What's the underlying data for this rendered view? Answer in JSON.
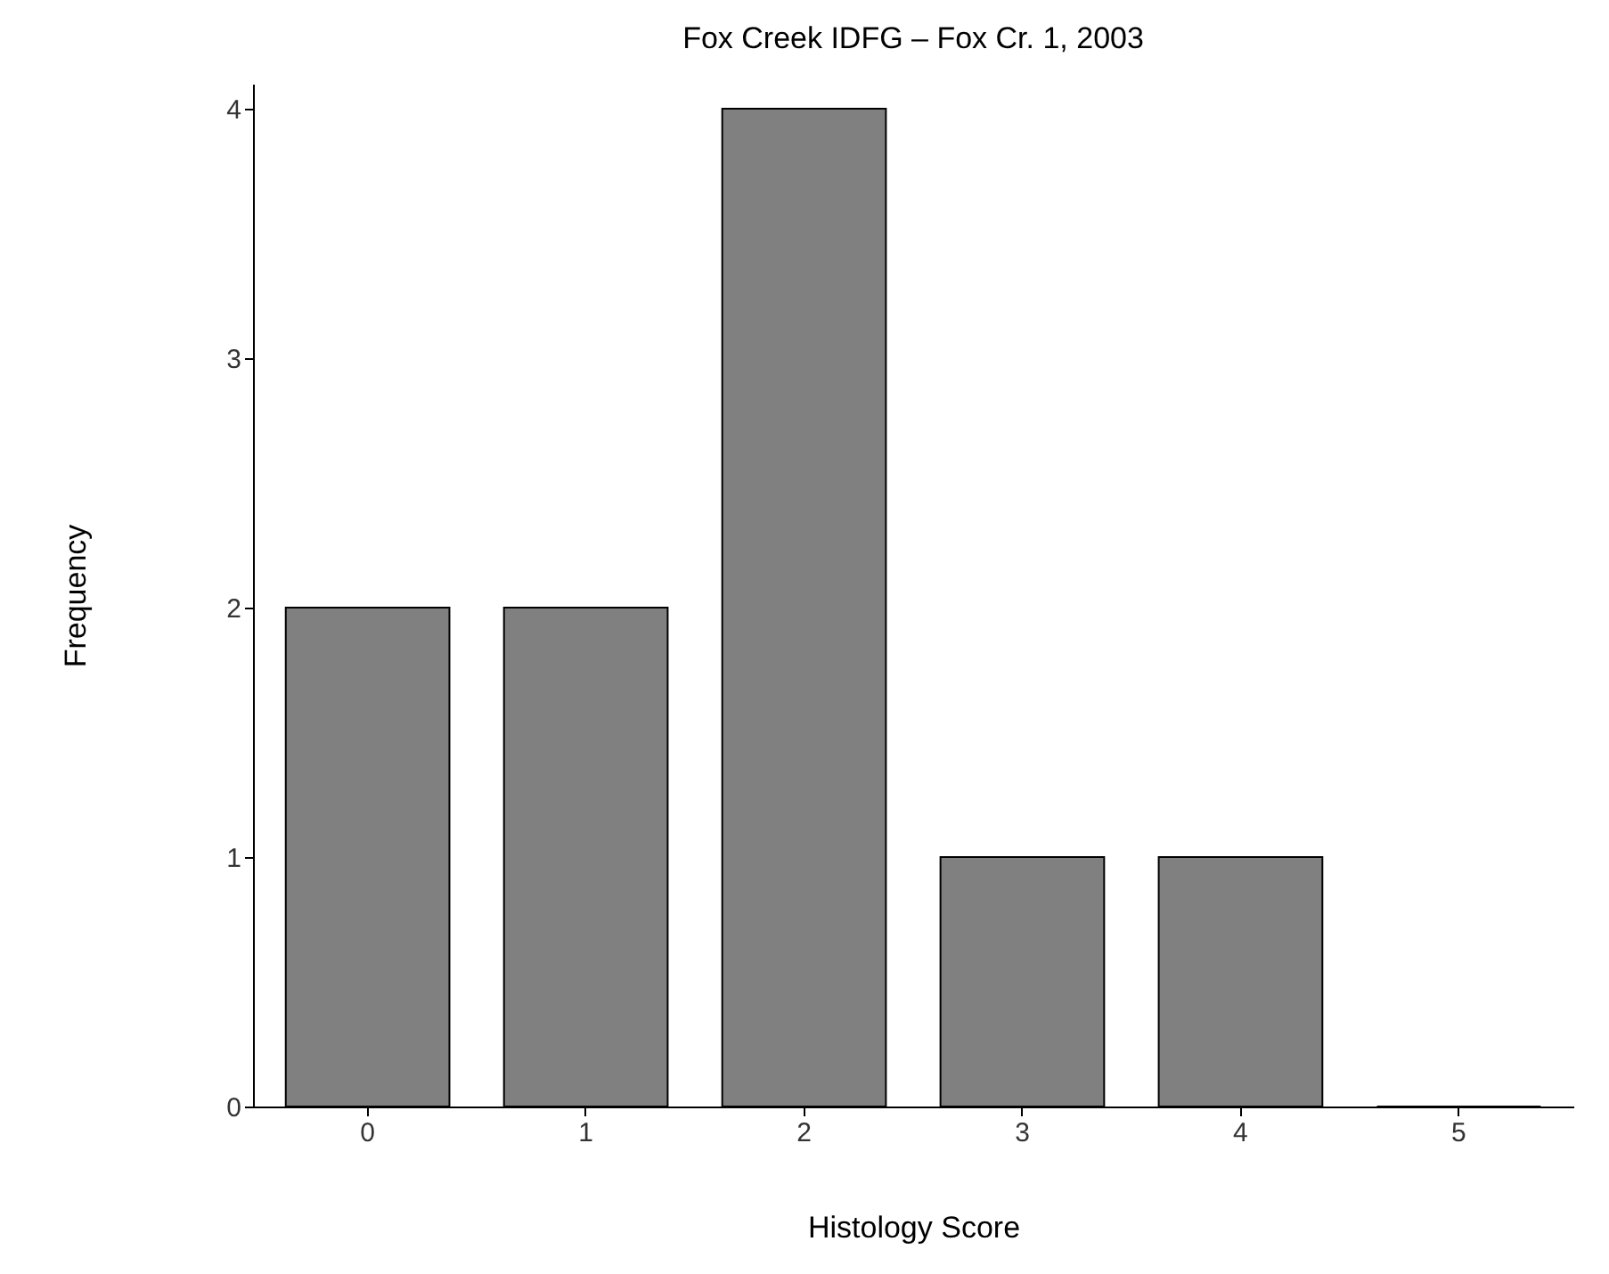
{
  "chart_data": {
    "type": "bar",
    "title": "Fox Creek IDFG – Fox Cr. 1, 2003",
    "xlabel": "Histology Score",
    "ylabel": "Frequency",
    "categories": [
      "0",
      "1",
      "2",
      "3",
      "4",
      "5"
    ],
    "values": [
      2,
      2,
      4,
      1,
      1,
      0
    ],
    "color": "#808080",
    "ylim": [
      0,
      4.1
    ],
    "yticks": [
      0,
      1,
      2,
      3,
      4
    ],
    "grid": false
  }
}
